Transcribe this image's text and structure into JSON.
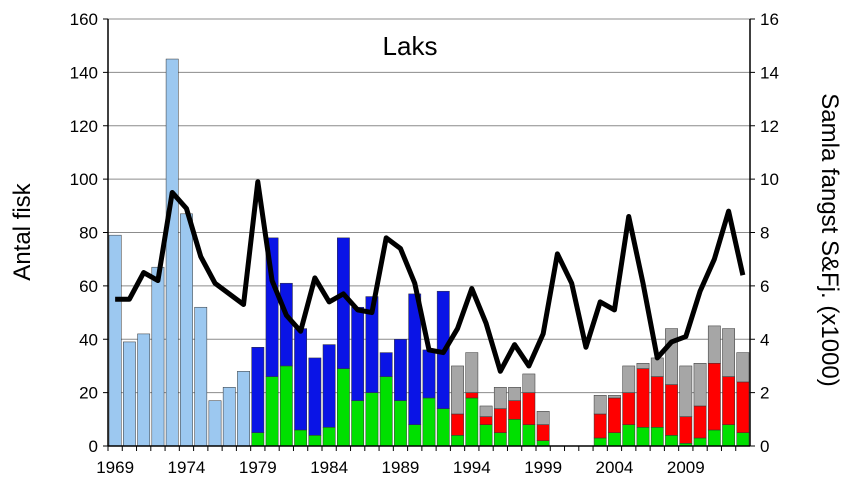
{
  "chart_data": {
    "type": "bar",
    "title": "Laks",
    "y_label": "Antal fisk",
    "y2_label": "Samla fangst S&Fj. (x1000)",
    "categories": [
      "1969",
      null,
      null,
      null,
      null,
      "1974",
      null,
      null,
      null,
      null,
      "1979",
      null,
      null,
      null,
      null,
      "1984",
      null,
      null,
      null,
      null,
      "1989",
      null,
      null,
      null,
      null,
      "1994",
      null,
      null,
      null,
      null,
      "1999",
      null,
      null,
      null,
      null,
      "2004",
      null,
      null,
      null,
      null,
      "2009",
      null,
      null,
      null,
      null
    ],
    "ylim": [
      0,
      160
    ],
    "yticks": [
      0,
      20,
      40,
      60,
      80,
      100,
      120,
      140,
      160
    ],
    "y2lim": [
      0,
      16
    ],
    "y2ticks": [
      0,
      2,
      4,
      6,
      8,
      10,
      12,
      14,
      16
    ],
    "grid": true,
    "series": [
      {
        "color": "#00e000",
        "values": [
          null,
          null,
          null,
          null,
          null,
          null,
          null,
          null,
          null,
          null,
          5,
          26,
          30,
          6,
          4,
          7,
          29,
          17,
          20,
          26,
          17,
          8,
          18,
          14,
          4,
          18,
          8,
          5,
          10,
          8,
          2,
          null,
          null,
          null,
          3,
          5,
          8,
          7,
          7,
          4,
          1,
          3,
          6,
          8,
          5
        ]
      },
      {
        "color": "#ff0000",
        "values": [
          null,
          null,
          null,
          null,
          null,
          null,
          null,
          null,
          null,
          null,
          null,
          null,
          null,
          null,
          null,
          null,
          null,
          null,
          null,
          null,
          null,
          null,
          null,
          null,
          8,
          2,
          3,
          9,
          7,
          12,
          6,
          null,
          null,
          null,
          9,
          13,
          12,
          22,
          19,
          19,
          10,
          12,
          25,
          18,
          19
        ]
      },
      {
        "color": "#a6a6a6",
        "values": [
          null,
          null,
          null,
          null,
          null,
          null,
          null,
          null,
          null,
          null,
          null,
          null,
          null,
          null,
          null,
          null,
          null,
          null,
          null,
          null,
          null,
          null,
          null,
          null,
          18,
          15,
          4,
          8,
          5,
          7,
          5,
          null,
          null,
          null,
          7,
          1,
          10,
          2,
          7,
          21,
          19,
          16,
          14,
          18,
          11
        ]
      },
      {
        "color": "#0a14e6",
        "values": [
          null,
          null,
          null,
          null,
          null,
          null,
          null,
          null,
          null,
          null,
          32,
          52,
          31,
          38,
          29,
          31,
          49,
          35,
          36,
          9,
          23,
          49,
          18,
          44,
          null,
          null,
          null,
          null,
          null,
          null,
          null,
          null,
          null,
          null,
          null,
          null,
          null,
          null,
          null,
          null,
          null,
          null,
          null,
          null,
          null
        ]
      },
      {
        "color": "#9cc8f0",
        "values": [
          79,
          39,
          42,
          67,
          145,
          87,
          52,
          17,
          22,
          28,
          null,
          null,
          null,
          null,
          null,
          null,
          null,
          null,
          null,
          null,
          null,
          null,
          null,
          null,
          null,
          null,
          null,
          null,
          null,
          null,
          null,
          null,
          null,
          null,
          null,
          null,
          null,
          null,
          null,
          null,
          null,
          null,
          null,
          null,
          null
        ]
      },
      {
        "type": "line",
        "axis": "y2",
        "color": "#000000",
        "values": [
          5.5,
          5.5,
          6.5,
          6.2,
          9.5,
          8.9,
          7.1,
          6.1,
          5.7,
          5.3,
          9.9,
          6.2,
          4.9,
          4.3,
          6.3,
          5.4,
          5.7,
          5.1,
          5.0,
          7.8,
          7.4,
          6.1,
          3.6,
          3.5,
          4.4,
          5.9,
          4.6,
          2.8,
          3.8,
          3.0,
          4.2,
          7.2,
          6.1,
          3.7,
          5.4,
          5.1,
          8.6,
          6.1,
          3.3,
          3.9,
          4.1,
          5.8,
          7.0,
          8.8,
          6.4
        ]
      }
    ]
  }
}
